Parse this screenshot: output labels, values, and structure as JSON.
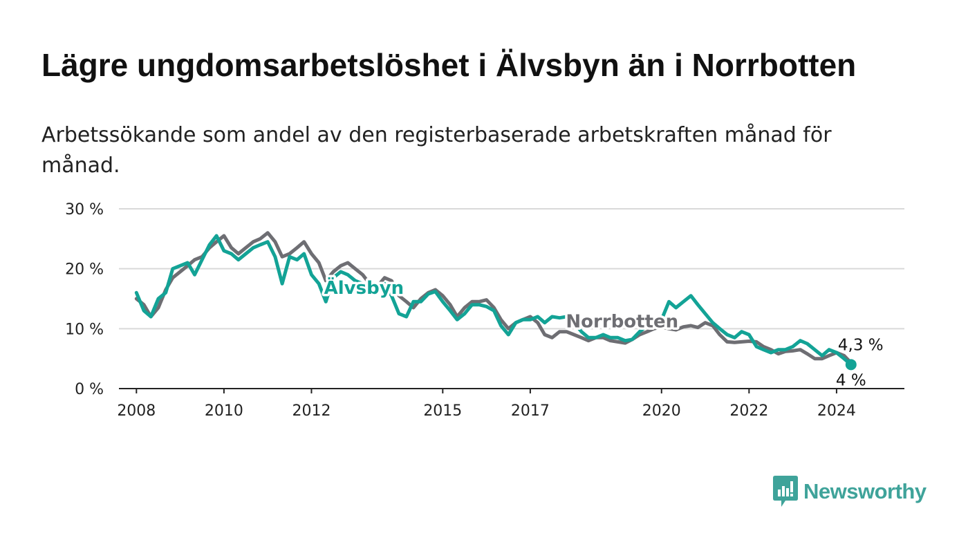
{
  "chart_data": {
    "type": "line",
    "title": "Lägre ungdomsarbetslöshet i Älvsbyn än i Norrbotten",
    "subtitle": "Arbetssökande som andel av den registerbaserade arbetskraften månad för månad.",
    "xlabel": "",
    "ylabel": "",
    "xlim": [
      2007.6,
      2025.55
    ],
    "ylim": [
      0,
      30
    ],
    "y_ticks": [
      {
        "value": 0,
        "label": "0 %"
      },
      {
        "value": 10,
        "label": "10 %"
      },
      {
        "value": 20,
        "label": "20 %"
      },
      {
        "value": 30,
        "label": "30 %"
      }
    ],
    "x_ticks": [
      {
        "value": 2008,
        "label": "2008"
      },
      {
        "value": 2010,
        "label": "2010"
      },
      {
        "value": 2012,
        "label": "2012"
      },
      {
        "value": 2015,
        "label": "2015"
      },
      {
        "value": 2017,
        "label": "2017"
      },
      {
        "value": 2020,
        "label": "2020"
      },
      {
        "value": 2022,
        "label": "2022"
      },
      {
        "value": 2024,
        "label": "2024"
      }
    ],
    "grid": true,
    "series": [
      {
        "name": "Norrbotten",
        "color": "#6e6e73",
        "end_label": "4,3 %",
        "x": [
          2008.0,
          2008.17,
          2008.33,
          2008.5,
          2008.67,
          2008.83,
          2009.0,
          2009.17,
          2009.33,
          2009.5,
          2009.67,
          2009.83,
          2010.0,
          2010.17,
          2010.33,
          2010.5,
          2010.67,
          2010.83,
          2011.0,
          2011.17,
          2011.33,
          2011.5,
          2011.67,
          2011.83,
          2012.0,
          2012.17,
          2012.33,
          2012.5,
          2012.67,
          2012.83,
          2013.0,
          2013.17,
          2013.33,
          2013.5,
          2013.67,
          2013.83,
          2014.0,
          2014.17,
          2014.33,
          2014.5,
          2014.67,
          2014.83,
          2015.0,
          2015.17,
          2015.33,
          2015.5,
          2015.67,
          2015.83,
          2016.0,
          2016.17,
          2016.33,
          2016.5,
          2016.67,
          2016.83,
          2017.0,
          2017.17,
          2017.33,
          2017.5,
          2017.67,
          2017.83,
          2018.0,
          2018.17,
          2018.33,
          2018.5,
          2018.67,
          2018.83,
          2019.0,
          2019.17,
          2019.33,
          2019.5,
          2019.67,
          2019.83,
          2020.0,
          2020.17,
          2020.33,
          2020.5,
          2020.67,
          2020.83,
          2021.0,
          2021.17,
          2021.33,
          2021.5,
          2021.67,
          2021.83,
          2022.0,
          2022.17,
          2022.33,
          2022.5,
          2022.67,
          2022.83,
          2023.0,
          2023.17,
          2023.33,
          2023.5,
          2023.67,
          2023.83,
          2024.0,
          2024.17,
          2024.33
        ],
        "values": [
          15.0,
          14.0,
          12.0,
          13.5,
          16.5,
          18.5,
          19.5,
          20.5,
          21.5,
          22.0,
          23.5,
          24.5,
          25.5,
          23.5,
          22.5,
          23.5,
          24.5,
          25.0,
          26.0,
          24.5,
          22.0,
          22.5,
          23.5,
          24.5,
          22.5,
          21.0,
          18.0,
          19.5,
          20.5,
          21.0,
          20.0,
          19.0,
          17.5,
          17.0,
          18.5,
          18.0,
          15.5,
          14.5,
          13.5,
          15.0,
          16.0,
          16.5,
          15.5,
          14.0,
          12.0,
          13.5,
          14.5,
          14.5,
          14.8,
          13.5,
          11.5,
          10.0,
          11.0,
          11.5,
          12.0,
          11.0,
          9.0,
          8.5,
          9.5,
          9.5,
          9.0,
          8.5,
          8.0,
          8.5,
          8.5,
          8.0,
          7.8,
          7.6,
          8.2,
          9.0,
          9.5,
          10.0,
          10.3,
          10.0,
          9.8,
          10.3,
          10.5,
          10.2,
          11.0,
          10.5,
          9.0,
          7.8,
          7.7,
          7.8,
          7.9,
          7.8,
          7.0,
          6.5,
          5.8,
          6.2,
          6.3,
          6.5,
          5.8,
          5.0,
          5.0,
          5.5,
          6.0,
          5.5,
          4.3
        ]
      },
      {
        "name": "Älvsbyn",
        "color": "#13a396",
        "end_label": "4 %",
        "x": [
          2008.0,
          2008.17,
          2008.33,
          2008.5,
          2008.67,
          2008.83,
          2009.0,
          2009.17,
          2009.33,
          2009.5,
          2009.67,
          2009.83,
          2010.0,
          2010.17,
          2010.33,
          2010.5,
          2010.67,
          2010.83,
          2011.0,
          2011.17,
          2011.33,
          2011.5,
          2011.67,
          2011.83,
          2012.0,
          2012.17,
          2012.33,
          2012.5,
          2012.67,
          2012.83,
          2013.0,
          2013.17,
          2013.33,
          2013.5,
          2013.67,
          2013.83,
          2014.0,
          2014.17,
          2014.33,
          2014.5,
          2014.67,
          2014.83,
          2015.0,
          2015.17,
          2015.33,
          2015.5,
          2015.67,
          2015.83,
          2016.0,
          2016.17,
          2016.33,
          2016.5,
          2016.67,
          2016.83,
          2017.0,
          2017.17,
          2017.33,
          2017.5,
          2017.67,
          2017.83,
          2018.0,
          2018.17,
          2018.33,
          2018.5,
          2018.67,
          2018.83,
          2019.0,
          2019.17,
          2019.33,
          2019.5,
          2019.67,
          2019.83,
          2020.0,
          2020.17,
          2020.33,
          2020.5,
          2020.67,
          2020.83,
          2021.0,
          2021.17,
          2021.33,
          2021.5,
          2021.67,
          2021.83,
          2022.0,
          2022.17,
          2022.33,
          2022.5,
          2022.67,
          2022.83,
          2023.0,
          2023.17,
          2023.33,
          2023.5,
          2023.67,
          2023.83,
          2024.0,
          2024.17,
          2024.33
        ],
        "values": [
          16.0,
          13.0,
          12.0,
          15.0,
          16.0,
          20.0,
          20.5,
          21.0,
          19.0,
          21.5,
          24.0,
          25.5,
          23.0,
          22.5,
          21.5,
          22.5,
          23.5,
          24.0,
          24.5,
          22.0,
          17.5,
          22.0,
          21.5,
          22.5,
          19.0,
          17.5,
          14.5,
          18.5,
          19.5,
          19.0,
          18.0,
          17.5,
          17.0,
          16.0,
          17.5,
          15.5,
          12.5,
          12.0,
          14.5,
          14.5,
          15.8,
          16.2,
          14.5,
          13.0,
          11.5,
          12.5,
          14.0,
          14.0,
          13.7,
          13.0,
          10.5,
          9.0,
          11.0,
          11.5,
          11.5,
          12.0,
          11.0,
          12.0,
          11.8,
          12.0,
          11.0,
          9.5,
          8.5,
          8.5,
          9.0,
          8.5,
          8.5,
          8.0,
          8.2,
          9.5,
          10.5,
          11.0,
          11.5,
          14.5,
          13.5,
          14.5,
          15.5,
          14.0,
          12.5,
          11.0,
          10.0,
          9.0,
          8.5,
          9.5,
          9.0,
          7.0,
          6.5,
          6.0,
          6.5,
          6.5,
          7.0,
          8.0,
          7.5,
          6.5,
          5.5,
          6.5,
          6.0,
          5.0,
          4.0
        ]
      }
    ],
    "annotations": [
      {
        "text": "Älvsbyn",
        "series": "Älvsbyn"
      },
      {
        "text": "Norrbotten",
        "series": "Norrbotten"
      }
    ]
  },
  "brand": {
    "name": "Newsworthy",
    "color": "#3fa39a"
  }
}
